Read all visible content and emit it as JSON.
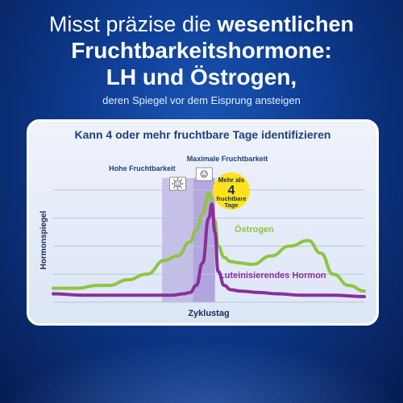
{
  "headline": {
    "line1_light": "Misst präzise die ",
    "line1_bold": "wesentlichen",
    "line2": "Fruchtbarkeitshormone:",
    "line3": "LH und Östrogen,",
    "subtitle": "deren Spiegel vor dem Eisprung ansteigen"
  },
  "chart_data": {
    "type": "line",
    "title": "Kann 4 oder mehr fruchtbare Tage identifizieren",
    "xlabel": "Zyklustag",
    "ylabel": "Hormonspiegel",
    "grid": true,
    "xlim": [
      0,
      100
    ],
    "ylim": [
      0,
      100
    ],
    "series": [
      {
        "name": "Östrogen",
        "color": "#8dc63f",
        "x": [
          0,
          8,
          14,
          18,
          24,
          30,
          36,
          40,
          44,
          46,
          48,
          50,
          52,
          53,
          55,
          57,
          60,
          64,
          70,
          76,
          82,
          86,
          90,
          95,
          100
        ],
        "y": [
          10,
          10,
          12,
          12,
          16,
          20,
          30,
          33,
          43,
          52,
          63,
          78,
          58,
          40,
          32,
          29,
          28,
          27,
          33,
          40,
          44,
          35,
          20,
          12,
          8
        ]
      },
      {
        "name": "Luteinisierendes Hormon",
        "color": "#8a2f9a",
        "x": [
          0,
          10,
          20,
          30,
          38,
          42,
          44,
          46,
          48,
          50,
          51,
          52,
          53,
          55,
          57,
          60,
          66,
          72,
          80,
          90,
          100
        ],
        "y": [
          6,
          5,
          5,
          5,
          5,
          6,
          7,
          12,
          28,
          60,
          70,
          50,
          22,
          12,
          9,
          8,
          7,
          6,
          5,
          5,
          4
        ]
      }
    ],
    "phases": [
      {
        "label": "Hohe Fruchtbarkeit",
        "icon": "smiley-face-sunburst-icon",
        "from": 35,
        "to": 45
      },
      {
        "label": "Maximale Fruchtbarkeit",
        "icon": "smiley-face-icon",
        "from": 45,
        "to": 52
      }
    ],
    "badge": {
      "line1": "Mehr als",
      "number": "4",
      "line2": "fruchtbare",
      "line3": "Tage"
    }
  }
}
